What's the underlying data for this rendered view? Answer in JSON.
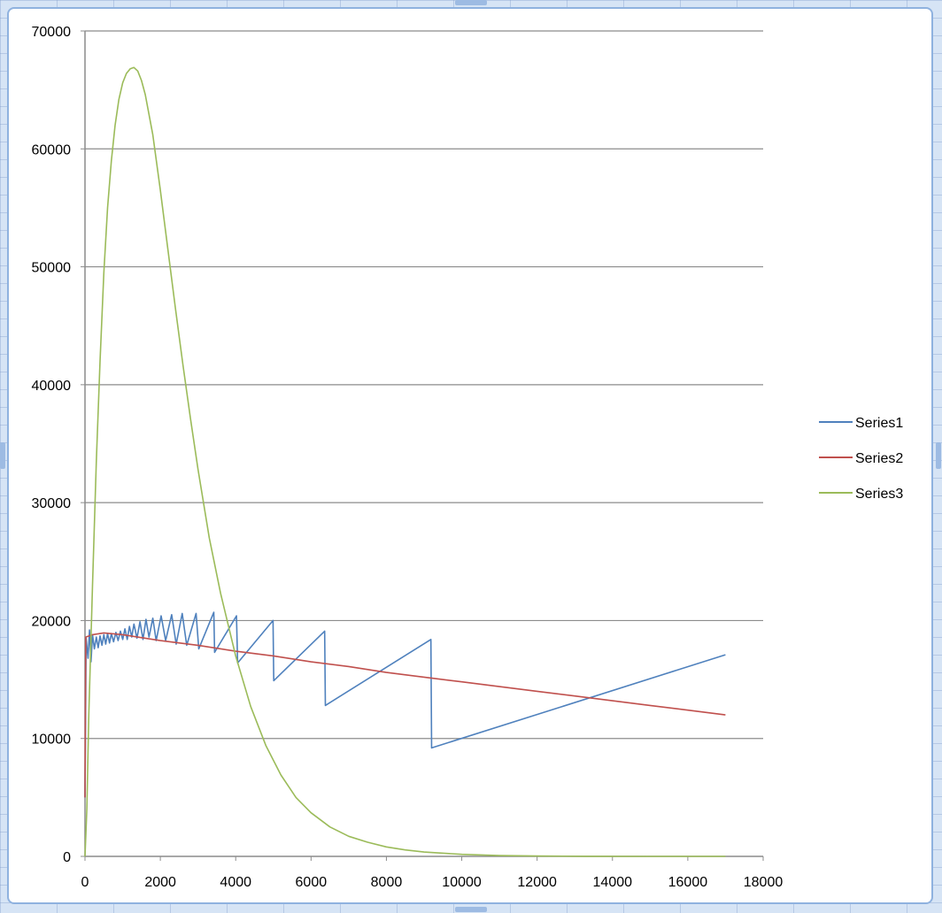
{
  "chart_data": {
    "type": "line",
    "title": "",
    "xlabel": "",
    "ylabel": "",
    "xlim": [
      0,
      18000
    ],
    "ylim": [
      0,
      70000
    ],
    "x_ticks": [
      "0",
      "2000",
      "4000",
      "6000",
      "8000",
      "10000",
      "12000",
      "14000",
      "16000",
      "18000"
    ],
    "y_ticks": [
      "0",
      "10000",
      "20000",
      "30000",
      "40000",
      "50000",
      "60000",
      "70000"
    ],
    "grid": "horizontal",
    "legend_position": "right",
    "series": [
      {
        "name": "Series1",
        "color": "#4f81bd",
        "points": [
          [
            0,
            5000
          ],
          [
            30,
            18500
          ],
          [
            80,
            16800
          ],
          [
            120,
            19200
          ],
          [
            160,
            16500
          ],
          [
            200,
            18800
          ],
          [
            250,
            17600
          ],
          [
            300,
            18600
          ],
          [
            350,
            17700
          ],
          [
            400,
            18700
          ],
          [
            450,
            17900
          ],
          [
            500,
            18800
          ],
          [
            550,
            18000
          ],
          [
            600,
            18900
          ],
          [
            650,
            18100
          ],
          [
            700,
            18900
          ],
          [
            760,
            18200
          ],
          [
            820,
            19000
          ],
          [
            880,
            18300
          ],
          [
            940,
            19100
          ],
          [
            1000,
            18400
          ],
          [
            1060,
            19300
          ],
          [
            1120,
            18400
          ],
          [
            1180,
            19500
          ],
          [
            1240,
            18600
          ],
          [
            1300,
            19700
          ],
          [
            1380,
            18500
          ],
          [
            1460,
            19900
          ],
          [
            1540,
            18400
          ],
          [
            1620,
            20100
          ],
          [
            1700,
            18600
          ],
          [
            1800,
            20200
          ],
          [
            1890,
            18300
          ],
          [
            2020,
            20400
          ],
          [
            2140,
            18300
          ],
          [
            2300,
            20500
          ],
          [
            2420,
            18000
          ],
          [
            2580,
            20600
          ],
          [
            2700,
            17900
          ],
          [
            2950,
            20600
          ],
          [
            3020,
            17600
          ],
          [
            3420,
            20700
          ],
          [
            3440,
            17300
          ],
          [
            4020,
            20400
          ],
          [
            4050,
            16400
          ],
          [
            4990,
            20000
          ],
          [
            5010,
            14900
          ],
          [
            6360,
            19100
          ],
          [
            6380,
            12800
          ],
          [
            9180,
            18400
          ],
          [
            9200,
            9200
          ],
          [
            17000,
            17100
          ]
        ]
      },
      {
        "name": "Series2",
        "color": "#c0504d",
        "points": [
          [
            0,
            5000
          ],
          [
            20,
            18600
          ],
          [
            200,
            18800
          ],
          [
            500,
            18950
          ],
          [
            1000,
            18800
          ],
          [
            2000,
            18300
          ],
          [
            3000,
            17900
          ],
          [
            4000,
            17400
          ],
          [
            5000,
            17000
          ],
          [
            6000,
            16500
          ],
          [
            7000,
            16100
          ],
          [
            8000,
            15600
          ],
          [
            9000,
            15200
          ],
          [
            10000,
            14800
          ],
          [
            11000,
            14400
          ],
          [
            12000,
            14000
          ],
          [
            13000,
            13600
          ],
          [
            14000,
            13200
          ],
          [
            15000,
            12800
          ],
          [
            16000,
            12400
          ],
          [
            17000,
            12000
          ]
        ]
      },
      {
        "name": "Series3",
        "color": "#9bbb59",
        "points": [
          [
            0,
            0
          ],
          [
            50,
            4000
          ],
          [
            100,
            12000
          ],
          [
            200,
            23000
          ],
          [
            300,
            33500
          ],
          [
            400,
            42000
          ],
          [
            500,
            49500
          ],
          [
            600,
            55000
          ],
          [
            700,
            59000
          ],
          [
            800,
            62000
          ],
          [
            900,
            64200
          ],
          [
            1000,
            65600
          ],
          [
            1100,
            66400
          ],
          [
            1200,
            66800
          ],
          [
            1300,
            66900
          ],
          [
            1400,
            66600
          ],
          [
            1500,
            65800
          ],
          [
            1600,
            64600
          ],
          [
            1800,
            61200
          ],
          [
            2000,
            56500
          ],
          [
            2200,
            51500
          ],
          [
            2400,
            46500
          ],
          [
            2600,
            41700
          ],
          [
            2800,
            37100
          ],
          [
            3000,
            32800
          ],
          [
            3300,
            27000
          ],
          [
            3600,
            22300
          ],
          [
            4000,
            17000
          ],
          [
            4400,
            12700
          ],
          [
            4800,
            9400
          ],
          [
            5200,
            6900
          ],
          [
            5600,
            5000
          ],
          [
            6000,
            3700
          ],
          [
            6500,
            2500
          ],
          [
            7000,
            1700
          ],
          [
            7500,
            1200
          ],
          [
            8000,
            800
          ],
          [
            8500,
            550
          ],
          [
            9000,
            370
          ],
          [
            10000,
            170
          ],
          [
            11000,
            70
          ],
          [
            12000,
            30
          ],
          [
            13300,
            10
          ],
          [
            15000,
            0
          ],
          [
            17000,
            0
          ]
        ]
      }
    ]
  }
}
